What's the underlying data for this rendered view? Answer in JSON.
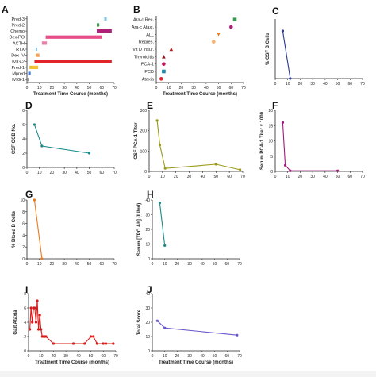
{
  "figure": {
    "background": "#ffffff"
  },
  "chart_data": [
    {
      "panel": "A",
      "type": "gantt",
      "xlabel": "Treatment Time Course (months)",
      "xlim": [
        0,
        70
      ],
      "xticks": [
        0,
        10,
        20,
        30,
        40,
        50,
        60,
        70
      ],
      "categories": [
        "Pred-3",
        "Pred-2",
        "Chemo",
        "Dex-PO",
        "ACTH",
        "RTX",
        "Dex-IV",
        "IVIG-2",
        "Pred-1",
        "Mpred",
        "IVIG-1"
      ],
      "bars": [
        {
          "category": "Pred-3",
          "start": 62,
          "end": 64,
          "color": "#7dc8dc"
        },
        {
          "category": "Pred-2",
          "start": 56,
          "end": 58,
          "color": "#3a9a55"
        },
        {
          "category": "Chemo",
          "start": 56,
          "end": 68,
          "color": "#b0227a"
        },
        {
          "category": "Dex-PO",
          "start": 15,
          "end": 60,
          "color": "#e84d8a"
        },
        {
          "category": "ACTH",
          "start": 12,
          "end": 16,
          "color": "#f07aa8"
        },
        {
          "category": "RTX",
          "start": 7,
          "end": 8,
          "color": "#4a9ad8"
        },
        {
          "category": "Dex-IV",
          "start": 7,
          "end": 10,
          "color": "#f3a15a"
        },
        {
          "category": "IVIG-2",
          "start": 6,
          "end": 68,
          "color": "#e3242b"
        },
        {
          "category": "Pred-1",
          "start": 2,
          "end": 9,
          "color": "#f2c230"
        },
        {
          "category": "Mpred",
          "start": 1,
          "end": 3,
          "color": "#4a7de0"
        },
        {
          "category": "IVIG-1",
          "start": 0.5,
          "end": 1.5,
          "color": "#999999"
        }
      ]
    },
    {
      "panel": "B",
      "type": "scatter",
      "xlabel": "Treatment Time Course (months)",
      "xlim": [
        0,
        70
      ],
      "xticks": [
        0,
        10,
        20,
        30,
        40,
        50,
        60,
        70
      ],
      "categories": [
        "Ara-c Rec.",
        "Ara-c Ataxi.",
        "ALL",
        "Regres.",
        "Vit D Insuf.",
        "Thyroiditis",
        "PCA-1",
        "PCD",
        "Ataxia"
      ],
      "points": [
        {
          "category": "Ara-c Rec.",
          "x": 63,
          "color": "#3a9a55",
          "marker": "square"
        },
        {
          "category": "Ara-c Ataxi.",
          "x": 60,
          "color": "#b0227a",
          "marker": "circle"
        },
        {
          "category": "ALL",
          "x": 50,
          "color": "#f07a1a",
          "marker": "triangle-down"
        },
        {
          "category": "Regres.",
          "x": 46,
          "color": "#f3b070",
          "marker": "circle"
        },
        {
          "category": "Vit D Insuf.",
          "x": 12,
          "color": "#b22222",
          "marker": "triangle"
        },
        {
          "category": "Thyroiditis",
          "x": 6,
          "color": "#8b1a1a",
          "marker": "triangle"
        },
        {
          "category": "PCA-1",
          "x": 6,
          "color": "#c2185b",
          "marker": "circle"
        },
        {
          "category": "PCD",
          "x": 6,
          "color": "#1e88a8",
          "marker": "square"
        },
        {
          "category": "Ataxia",
          "x": 4,
          "color": "#e3242b",
          "marker": "circle"
        }
      ]
    },
    {
      "panel": "C",
      "type": "line",
      "ylabel": "% CSF B Cells",
      "xlim": [
        0,
        70
      ],
      "xticks": [
        0,
        10,
        20,
        30,
        40,
        50,
        60,
        70
      ],
      "ylim": [
        0,
        2.0
      ],
      "yticks": [],
      "color": "#2a3a8c",
      "x": [
        6,
        12
      ],
      "y": [
        1.6,
        0
      ]
    },
    {
      "panel": "D",
      "type": "line",
      "ylabel": "CSF OCB No.",
      "xlim": [
        0,
        70
      ],
      "xticks": [
        0,
        10,
        20,
        30,
        40,
        50,
        60,
        70
      ],
      "ylim": [
        0,
        8
      ],
      "yticks": [
        0,
        2,
        4,
        6,
        8
      ],
      "color": "#1a8a8a",
      "x": [
        6,
        12,
        50
      ],
      "y": [
        6,
        3,
        2
      ]
    },
    {
      "panel": "E",
      "type": "line",
      "ylabel": "CSF PCA-1 Titer",
      "xlim": [
        0,
        70
      ],
      "xticks": [
        0,
        10,
        20,
        30,
        40,
        50,
        60,
        70
      ],
      "ylim": [
        0,
        300
      ],
      "yticks": [
        0,
        100,
        200,
        300
      ],
      "color": "#9b9b1a",
      "x": [
        6,
        8,
        12,
        50,
        68
      ],
      "y": [
        250,
        130,
        15,
        35,
        8
      ]
    },
    {
      "panel": "F",
      "type": "line",
      "ylabel": "Serum PCA-1 Titer x 1000",
      "xlim": [
        0,
        70
      ],
      "xticks": [
        0,
        10,
        20,
        30,
        40,
        50,
        60,
        70
      ],
      "ylim": [
        0,
        20
      ],
      "yticks": [
        0,
        5,
        10,
        15,
        20
      ],
      "color": "#a3187a",
      "x": [
        6,
        8,
        12,
        50
      ],
      "y": [
        16,
        2,
        0.2,
        0.2
      ]
    },
    {
      "panel": "G",
      "type": "line",
      "ylabel": "% Blood B Cells",
      "xlim": [
        0,
        70
      ],
      "xticks": [
        0,
        10,
        20,
        30,
        40,
        50,
        60,
        70
      ],
      "ylim": [
        0,
        10
      ],
      "yticks": [
        0,
        2,
        4,
        6,
        8,
        10
      ],
      "color": "#f07a1a",
      "x": [
        6,
        12
      ],
      "y": [
        10,
        0
      ]
    },
    {
      "panel": "H",
      "type": "line",
      "ylabel": "Serum [TPO Ab] (IU/ml)",
      "xlim": [
        0,
        70
      ],
      "xticks": [
        0,
        10,
        20,
        30,
        40,
        50,
        60,
        70
      ],
      "ylim": [
        0,
        40
      ],
      "yticks": [
        0,
        10,
        20,
        30,
        40
      ],
      "color": "#1a8a8a",
      "x": [
        6,
        10
      ],
      "y": [
        38,
        9
      ]
    },
    {
      "panel": "I",
      "type": "line",
      "ylabel": "Gait Ataxia",
      "xlabel": "Treatment Time Course (months)",
      "xlim": [
        0,
        70
      ],
      "xticks": [
        0,
        10,
        20,
        30,
        40,
        50,
        60,
        70
      ],
      "ylim": [
        0,
        8
      ],
      "yticks": [
        0,
        2,
        4,
        6,
        8
      ],
      "color": "#d81b1b",
      "x": [
        1,
        2,
        3,
        4,
        5,
        6,
        7,
        8,
        9,
        10,
        11,
        12,
        13,
        14,
        20,
        36,
        45,
        50,
        52,
        55,
        60,
        62,
        68
      ],
      "y": [
        3,
        6,
        4,
        6,
        6,
        4,
        7,
        3,
        5,
        3,
        2,
        2,
        2,
        2,
        1,
        1,
        1,
        2,
        2,
        1,
        1,
        1,
        1
      ]
    },
    {
      "panel": "J",
      "type": "line",
      "ylabel": "Total Score",
      "xlabel": "Treatment Time Course (months)",
      "xlim": [
        0,
        70
      ],
      "xticks": [
        0,
        10,
        20,
        30,
        40,
        50,
        60,
        70
      ],
      "ylim": [
        0,
        40
      ],
      "yticks": [
        0,
        10,
        20,
        30,
        40
      ],
      "color": "#6a5acd",
      "x": [
        4,
        10,
        68
      ],
      "y": [
        21,
        16,
        11
      ]
    }
  ]
}
